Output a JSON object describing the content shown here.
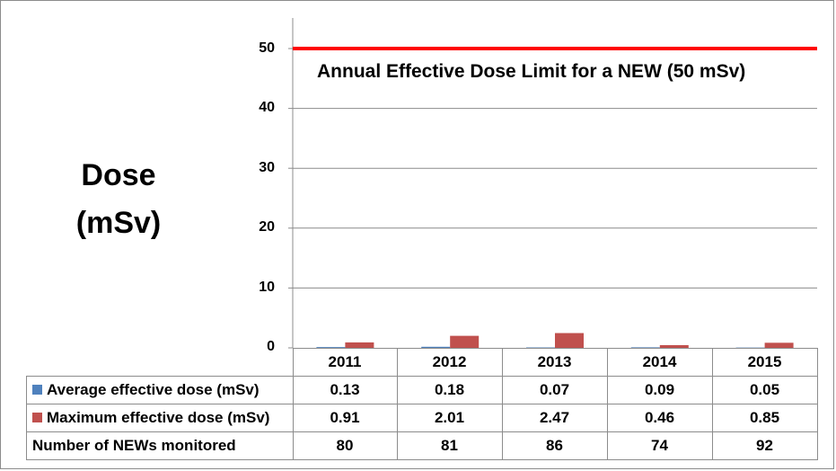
{
  "chart_data": {
    "type": "bar",
    "categories": [
      "2011",
      "2012",
      "2013",
      "2014",
      "2015"
    ],
    "series": [
      {
        "name": "Average effective dose (mSv)",
        "values": [
          0.13,
          0.18,
          0.07,
          0.09,
          0.05
        ],
        "color": "#4f81bd"
      },
      {
        "name": "Maximum effective dose (mSv)",
        "values": [
          0.91,
          2.01,
          2.47,
          0.46,
          0.85
        ],
        "color": "#c0504d"
      }
    ],
    "table_rows": [
      {
        "label": "Number of NEWs monitored",
        "values": [
          "80",
          "81",
          "86",
          "74",
          "92"
        ]
      }
    ],
    "ylabel_line1": "Dose",
    "ylabel_line2": "(mSv)",
    "yticks": [
      "0",
      "10",
      "20",
      "30",
      "40",
      "50"
    ],
    "ylim": [
      0,
      50
    ],
    "grid": true,
    "reference_line": {
      "value": 50,
      "label": "Annual Effective Dose Limit for a NEW (50 mSv)",
      "color": "#ff0000"
    }
  }
}
